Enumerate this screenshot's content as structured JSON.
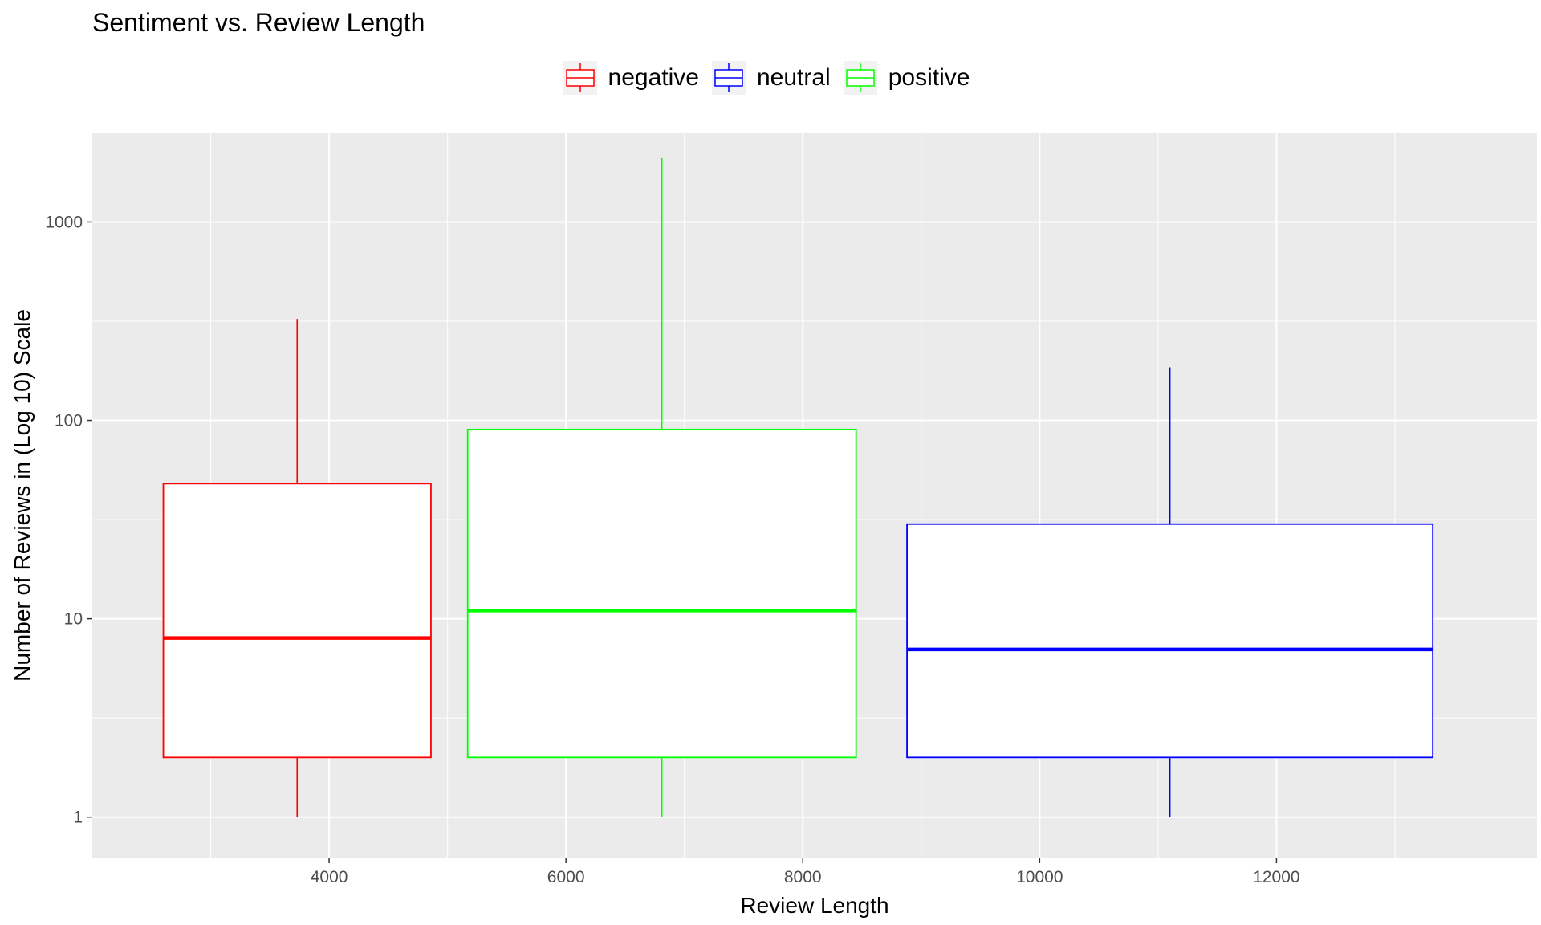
{
  "chart_data": {
    "type": "boxplot",
    "title": "Sentiment vs. Review Length",
    "xlabel": "Review Length",
    "ylabel": "Number of Reviews in (Log 10) Scale",
    "yscale": "log10",
    "xlim": [
      2000,
      14200
    ],
    "ylim": [
      0.62,
      2800
    ],
    "x_ticks": [
      4000,
      6000,
      8000,
      10000,
      12000
    ],
    "y_ticks": [
      1,
      10,
      100,
      1000
    ],
    "y_tick_labels": [
      "1",
      "10",
      "100",
      "1000"
    ],
    "grid": true,
    "legend_position": "top",
    "series": [
      {
        "name": "negative",
        "color": "#ff0000",
        "x_start": 2600,
        "x_end": 4860,
        "whisker_x": 3730,
        "min": 1,
        "q1": 2,
        "median": 8,
        "q3": 48,
        "max": 325
      },
      {
        "name": "positive",
        "color": "#00ff00",
        "x_start": 5170,
        "x_end": 8450,
        "whisker_x": 6810,
        "min": 1,
        "q1": 2,
        "median": 11,
        "q3": 90,
        "max": 2100
      },
      {
        "name": "neutral",
        "color": "#0000ff",
        "x_start": 8880,
        "x_end": 13320,
        "whisker_x": 11100,
        "min": 1,
        "q1": 2,
        "median": 7,
        "q3": 30,
        "max": 185
      }
    ],
    "legend": [
      {
        "name": "negative",
        "color": "#ff0000"
      },
      {
        "name": "neutral",
        "color": "#0000ff"
      },
      {
        "name": "positive",
        "color": "#00ff00"
      }
    ]
  }
}
